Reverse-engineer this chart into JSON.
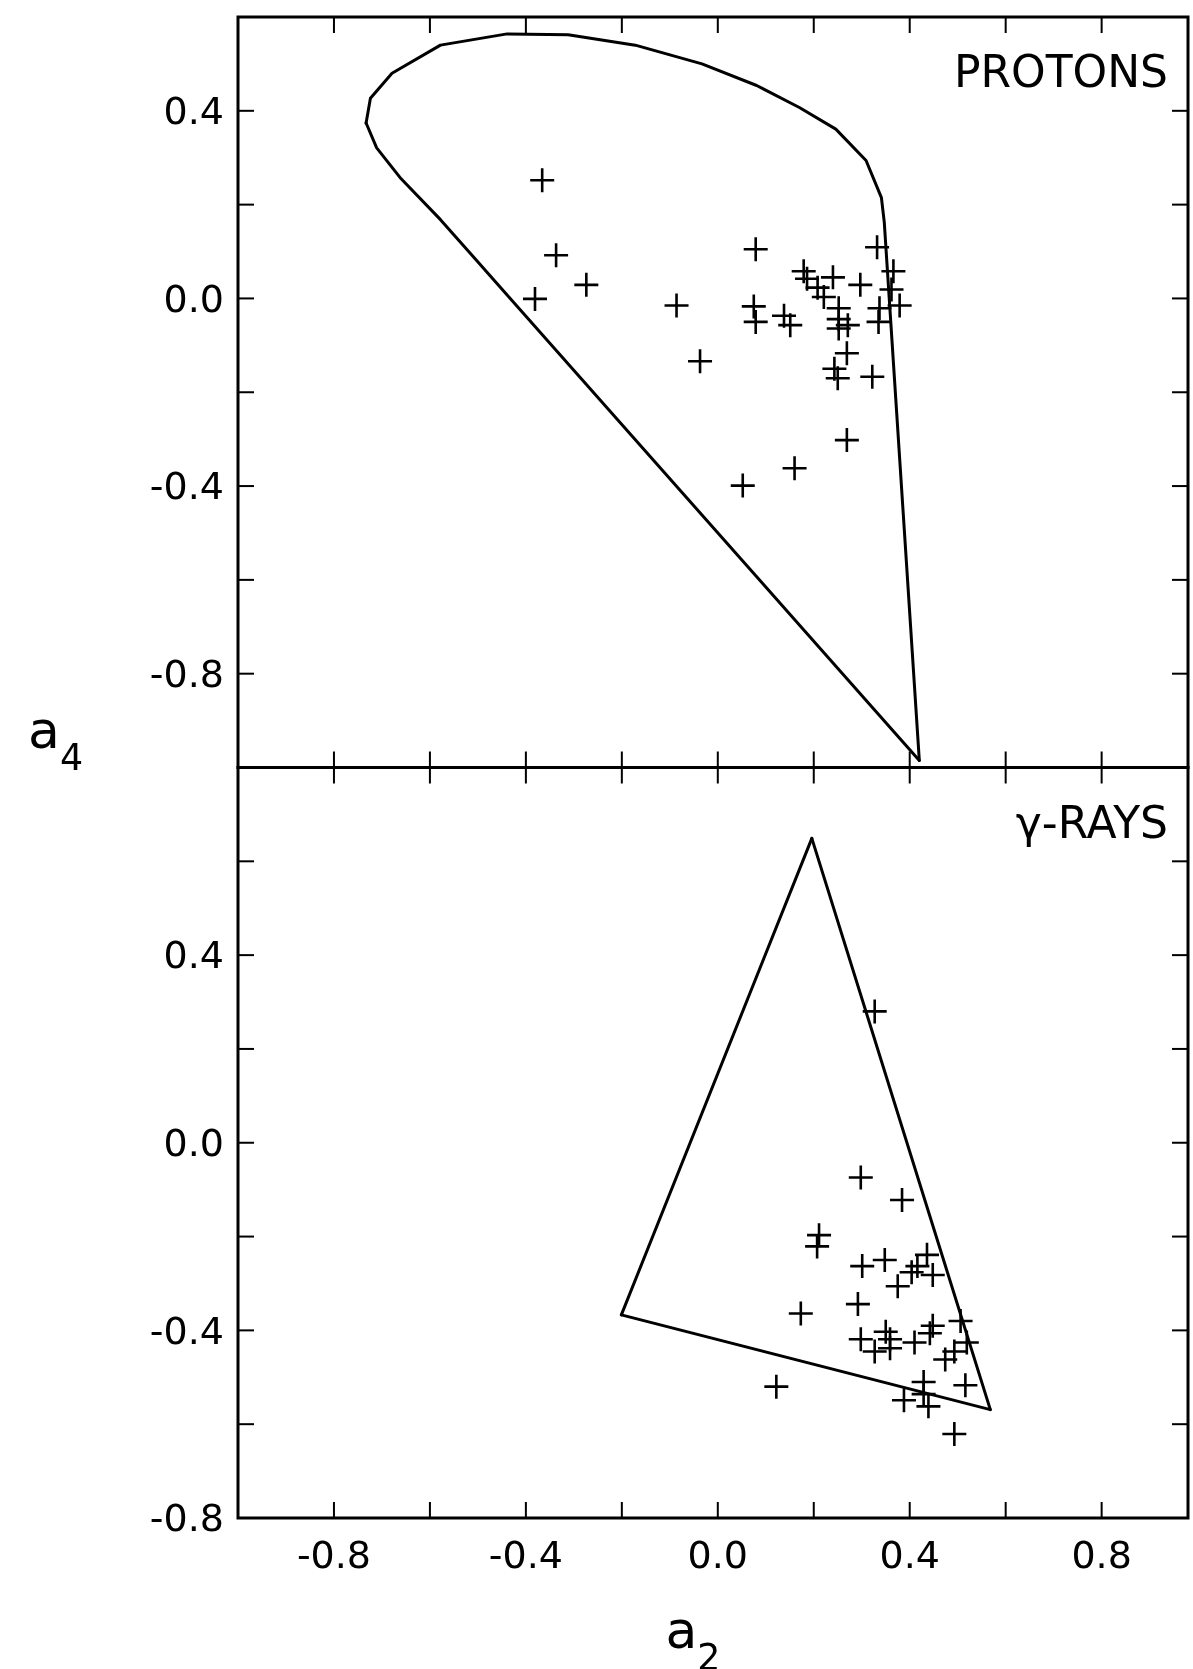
{
  "chart_data": [
    {
      "type": "scatter",
      "ylabel": "a$_{4}$",
      "annotations": [
        "PROTONS"
      ],
      "tick_labels": "y",
      "grid": false,
      "xlim": [
        -1.0,
        0.98
      ],
      "xticks": [
        {
          "value": -0.8,
          "label": null
        },
        {
          "value": -0.6,
          "label": null
        },
        {
          "value": -0.4,
          "label": null
        },
        {
          "value": -0.2,
          "label": null
        },
        {
          "value": 0,
          "label": null
        },
        {
          "value": 0.2,
          "label": null
        },
        {
          "value": 0.4,
          "label": null
        },
        {
          "value": 0.6,
          "label": null
        },
        {
          "value": 0.8,
          "label": null
        }
      ],
      "ylim": [
        -1.0,
        0.6
      ],
      "yticks": [
        -0.8,
        {
          "value": -0.6,
          "label": null
        },
        -0.4,
        {
          "value": -0.2,
          "label": null
        },
        {
          "value": 0,
          "label": "0.0"
        },
        {
          "value": 0.2,
          "label": null
        },
        0.4
      ],
      "series": [
        {
          "type": "line",
          "marker": "none",
          "color": "#000000",
          "x": [
            0.42,
            0.347,
            0.341,
            0.309,
            0.246,
            0.17,
            0.081,
            -0.033,
            -0.172,
            -0.312,
            -0.439,
            -0.578,
            -0.679,
            -0.724,
            -0.733
          ],
          "values": [
            -0.985,
            0.162,
            0.215,
            0.294,
            0.361,
            0.407,
            0.454,
            0.5,
            0.54,
            0.562,
            0.564,
            0.54,
            0.48,
            0.427,
            0.374
          ]
        },
        {
          "type": "line",
          "marker": "none",
          "color": "#000000",
          "x": [
            -0.733,
            -0.711,
            -0.66,
            -0.578,
            0.42
          ],
          "values": [
            0.374,
            0.321,
            0.255,
            0.168,
            -0.985
          ]
        },
        {
          "type": "scatter",
          "marker": "cross",
          "color": "#000000",
          "x": [
            -0.366,
            -0.337,
            -0.274,
            -0.381,
            -0.086,
            -0.037,
            0.079,
            0.075,
            0.079,
            0.138,
            0.151,
            0.179,
            0.186,
            0.208,
            0.24,
            0.297,
            0.221,
            0.252,
            0.252,
            0.252,
            0.271,
            0.269,
            0.243,
            0.25,
            0.322,
            0.269,
            0.16,
            0.052,
            0.332,
            0.366,
            0.362,
            0.379,
            0.337,
            0.335
          ],
          "values": [
            0.252,
            0.092,
            0.029,
            -0.001,
            -0.015,
            -0.134,
            0.105,
            -0.017,
            -0.05,
            -0.037,
            -0.057,
            0.058,
            0.042,
            0.023,
            0.045,
            0.029,
            0.003,
            -0.021,
            -0.044,
            -0.064,
            -0.057,
            -0.117,
            -0.15,
            -0.17,
            -0.167,
            -0.302,
            -0.362,
            -0.399,
            0.109,
            0.058,
            0.019,
            -0.015,
            -0.021,
            -0.05
          ]
        }
      ]
    },
    {
      "type": "scatter",
      "xlabel": "a$_{2}$",
      "annotations": [
        "γ-RAYS"
      ],
      "grid": false,
      "xlim": [
        -1.0,
        0.98
      ],
      "xticks": [
        -0.8,
        {
          "value": -0.6,
          "label": null
        },
        -0.4,
        {
          "value": -0.2,
          "label": null
        },
        {
          "value": 0,
          "label": "0.0"
        },
        {
          "value": 0.2,
          "label": null
        },
        0.4,
        {
          "value": 0.6,
          "label": null
        },
        0.8
      ],
      "ylim": [
        -0.8,
        0.8
      ],
      "yticks": [
        -0.8,
        {
          "value": -0.6,
          "label": null
        },
        -0.4,
        {
          "value": -0.2,
          "label": null
        },
        {
          "value": 0,
          "label": "0.0"
        },
        {
          "value": 0.2,
          "label": null
        },
        0.4,
        {
          "value": 0.6,
          "label": null
        }
      ],
      "series": [
        {
          "type": "line",
          "marker": "none",
          "color": "#000000",
          "x": [
            -0.201,
            0.196
          ],
          "values": [
            -0.367,
            0.649
          ]
        },
        {
          "type": "line",
          "marker": "none",
          "color": "#000000",
          "x": [
            0.196,
            0.568
          ],
          "values": [
            0.649,
            -0.569
          ]
        },
        {
          "type": "line",
          "marker": "none",
          "color": "#000000",
          "x": [
            -0.201,
            0.568
          ],
          "values": [
            -0.367,
            -0.569
          ]
        },
        {
          "type": "scatter",
          "marker": "cross",
          "color": "#000000",
          "x": [
            0.327,
            0.298,
            0.384,
            0.211,
            0.207,
            0.301,
            0.348,
            0.416,
            0.436,
            0.404,
            0.448,
            0.375,
            0.173,
            0.292,
            0.506,
            0.448,
            0.442,
            0.35,
            0.359,
            0.298,
            0.41,
            0.327,
            0.359,
            0.493,
            0.474,
            0.519,
            0.516,
            0.429,
            0.388,
            0.439,
            0.122,
            0.493,
            0.429
          ],
          "values": [
            0.28,
            -0.074,
            -0.122,
            -0.197,
            -0.221,
            -0.263,
            -0.25,
            -0.263,
            -0.239,
            -0.276,
            -0.282,
            -0.306,
            -0.364,
            -0.344,
            -0.38,
            -0.39,
            -0.406,
            -0.403,
            -0.419,
            -0.419,
            -0.426,
            -0.445,
            -0.438,
            -0.445,
            -0.462,
            -0.426,
            -0.517,
            -0.51,
            -0.549,
            -0.562,
            -0.52,
            -0.621,
            -0.536
          ]
        }
      ]
    }
  ]
}
